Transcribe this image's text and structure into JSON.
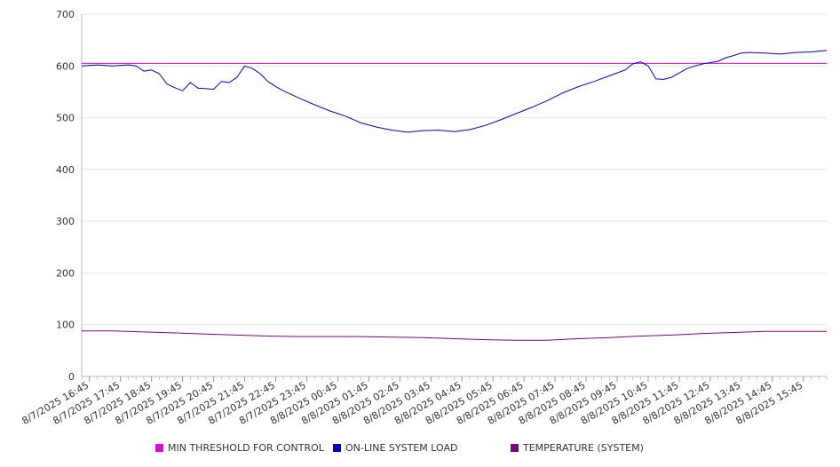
{
  "chart_data": {
    "type": "line",
    "title": "",
    "xlabel": "",
    "ylabel": "",
    "ylim": [
      0,
      700
    ],
    "yticks": [
      0,
      100,
      200,
      300,
      400,
      500,
      600,
      700
    ],
    "grid": "horizontal",
    "legend_position": "bottom",
    "x_tick_labels": [
      "8/7/2025 16:45",
      "8/7/2025 17:45",
      "8/7/2025 18:45",
      "8/7/2025 19:45",
      "8/7/2025 20:45",
      "8/7/2025 21:45",
      "8/7/2025 22:45",
      "8/7/2025 23:45",
      "8/8/2025 00:45",
      "8/8/2025 01:45",
      "8/8/2025 02:45",
      "8/8/2025 03:45",
      "8/8/2025 04:45",
      "8/8/2025 05:45",
      "8/8/2025 06:45",
      "8/8/2025 07:45",
      "8/8/2025 08:45",
      "8/8/2025 09:45",
      "8/8/2025 10:45",
      "8/8/2025 11:45",
      "8/8/2025 12:45",
      "8/8/2025 13:45",
      "8/8/2025 14:45",
      "8/8/2025 15:45"
    ],
    "series": [
      {
        "name": "MIN THRESHOLD FOR CONTROL",
        "color": "#e600e6",
        "x": [
          "8/7/2025 16:30",
          "8/8/2025 16:30"
        ],
        "values": [
          605,
          605
        ]
      },
      {
        "name": "ON-LINE SYSTEM LOAD",
        "color": "#0000cc",
        "x": [
          "8/7/2025 16:30",
          "8/7/2025 17:00",
          "8/7/2025 17:30",
          "8/7/2025 18:00",
          "8/7/2025 18:15",
          "8/7/2025 18:30",
          "8/7/2025 18:45",
          "8/7/2025 19:00",
          "8/7/2025 19:15",
          "8/7/2025 19:30",
          "8/7/2025 19:45",
          "8/7/2025 20:00",
          "8/7/2025 20:15",
          "8/7/2025 20:30",
          "8/7/2025 20:45",
          "8/7/2025 21:00",
          "8/7/2025 21:15",
          "8/7/2025 21:30",
          "8/7/2025 21:45",
          "8/7/2025 22:00",
          "8/7/2025 22:15",
          "8/7/2025 22:30",
          "8/7/2025 22:45",
          "8/7/2025 23:00",
          "8/7/2025 23:30",
          "8/8/2025 00:00",
          "8/8/2025 00:30",
          "8/8/2025 01:00",
          "8/8/2025 01:30",
          "8/8/2025 02:00",
          "8/8/2025 02:30",
          "8/8/2025 03:00",
          "8/8/2025 03:30",
          "8/8/2025 04:00",
          "8/8/2025 04:30",
          "8/8/2025 05:00",
          "8/8/2025 05:30",
          "8/8/2025 06:00",
          "8/8/2025 06:30",
          "8/8/2025 07:00",
          "8/8/2025 07:30",
          "8/8/2025 08:00",
          "8/8/2025 08:30",
          "8/8/2025 09:00",
          "8/8/2025 09:30",
          "8/8/2025 10:00",
          "8/8/2025 10:15",
          "8/8/2025 10:30",
          "8/8/2025 10:45",
          "8/8/2025 11:00",
          "8/8/2025 11:15",
          "8/8/2025 11:30",
          "8/8/2025 12:00",
          "8/8/2025 12:15",
          "8/8/2025 12:30",
          "8/8/2025 13:00",
          "8/8/2025 13:15",
          "8/8/2025 13:30",
          "8/8/2025 13:45",
          "8/8/2025 14:00",
          "8/8/2025 14:30",
          "8/8/2025 15:00",
          "8/8/2025 15:30",
          "8/8/2025 16:00",
          "8/8/2025 16:30"
        ],
        "values": [
          600,
          602,
          600,
          602,
          600,
          590,
          592,
          585,
          565,
          558,
          552,
          568,
          557,
          556,
          555,
          570,
          568,
          578,
          600,
          595,
          585,
          570,
          560,
          552,
          538,
          525,
          513,
          503,
          490,
          482,
          476,
          472,
          475,
          476,
          473,
          477,
          485,
          496,
          508,
          520,
          533,
          548,
          560,
          570,
          581,
          592,
          604,
          608,
          600,
          575,
          574,
          578,
          595,
          600,
          604,
          609,
          616,
          620,
          625,
          626,
          625,
          623,
          626,
          627,
          630
        ]
      },
      {
        "name": "TEMPERATURE (SYSTEM)",
        "color": "#800080",
        "x": [
          "8/7/2025 16:30",
          "8/7/2025 17:30",
          "8/7/2025 18:30",
          "8/7/2025 19:30",
          "8/7/2025 20:30",
          "8/7/2025 21:30",
          "8/7/2025 22:30",
          "8/7/2025 23:30",
          "8/8/2025 00:30",
          "8/8/2025 01:30",
          "8/8/2025 02:30",
          "8/8/2025 03:30",
          "8/8/2025 04:30",
          "8/8/2025 05:30",
          "8/8/2025 06:30",
          "8/8/2025 07:30",
          "8/8/2025 08:30",
          "8/8/2025 09:30",
          "8/8/2025 10:30",
          "8/8/2025 11:30",
          "8/8/2025 12:30",
          "8/8/2025 13:30",
          "8/8/2025 14:30",
          "8/8/2025 15:30",
          "8/8/2025 16:30"
        ],
        "values": [
          88,
          88,
          86,
          84,
          82,
          80,
          78,
          77,
          77,
          77,
          76,
          75,
          73,
          71,
          70,
          70,
          73,
          75,
          78,
          80,
          83,
          85,
          87,
          87,
          87
        ]
      }
    ]
  }
}
